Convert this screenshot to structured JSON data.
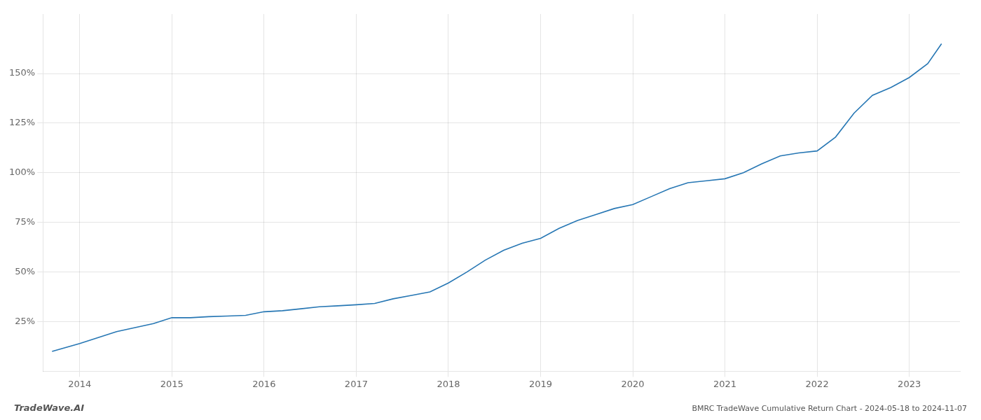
{
  "chart_data": {
    "type": "line",
    "title": "BMRC TradeWave Cumulative Return Chart - 2024-05-18 to 2024-11-07",
    "annotations": [
      "TradeWave.AI"
    ],
    "x": [
      2013.7,
      2014.0,
      2014.2,
      2014.4,
      2014.6,
      2014.8,
      2015.0,
      2015.2,
      2015.4,
      2015.6,
      2015.8,
      2016.0,
      2016.2,
      2016.4,
      2016.6,
      2016.8,
      2017.0,
      2017.2,
      2017.4,
      2017.6,
      2017.8,
      2018.0,
      2018.2,
      2018.4,
      2018.6,
      2018.8,
      2019.0,
      2019.2,
      2019.4,
      2019.6,
      2019.8,
      2020.0,
      2020.2,
      2020.4,
      2020.6,
      2020.8,
      2021.0,
      2021.2,
      2021.4,
      2021.6,
      2021.8,
      2022.0,
      2022.2,
      2022.4,
      2022.6,
      2022.8,
      2023.0,
      2023.2,
      2023.35
    ],
    "values": [
      0.1,
      0.14,
      0.17,
      0.2,
      0.22,
      0.24,
      0.27,
      0.27,
      0.275,
      0.278,
      0.282,
      0.3,
      0.305,
      0.315,
      0.325,
      0.33,
      0.335,
      0.342,
      0.365,
      0.382,
      0.4,
      0.445,
      0.5,
      0.56,
      0.61,
      0.645,
      0.67,
      0.72,
      0.76,
      0.79,
      0.82,
      0.84,
      0.88,
      0.92,
      0.95,
      0.96,
      0.97,
      1.0,
      1.045,
      1.085,
      1.1,
      1.11,
      1.18,
      1.3,
      1.39,
      1.43,
      1.48,
      1.55,
      1.65
    ],
    "color": "#2777b4",
    "xlim": [
      2013.6,
      2023.55
    ],
    "xticks": [
      2014,
      2015,
      2016,
      2017,
      2018,
      2019,
      2020,
      2021,
      2022,
      2023
    ],
    "ylim": [
      0.0,
      1.8
    ],
    "yticks": [
      {
        "value": 0.25,
        "label": "25%"
      },
      {
        "value": 0.5,
        "label": "50%"
      },
      {
        "value": 0.75,
        "label": "75%"
      },
      {
        "value": 1.0,
        "label": "100%"
      },
      {
        "value": 1.25,
        "label": "125%"
      },
      {
        "value": 1.5,
        "label": "150%"
      }
    ],
    "grid": true
  }
}
